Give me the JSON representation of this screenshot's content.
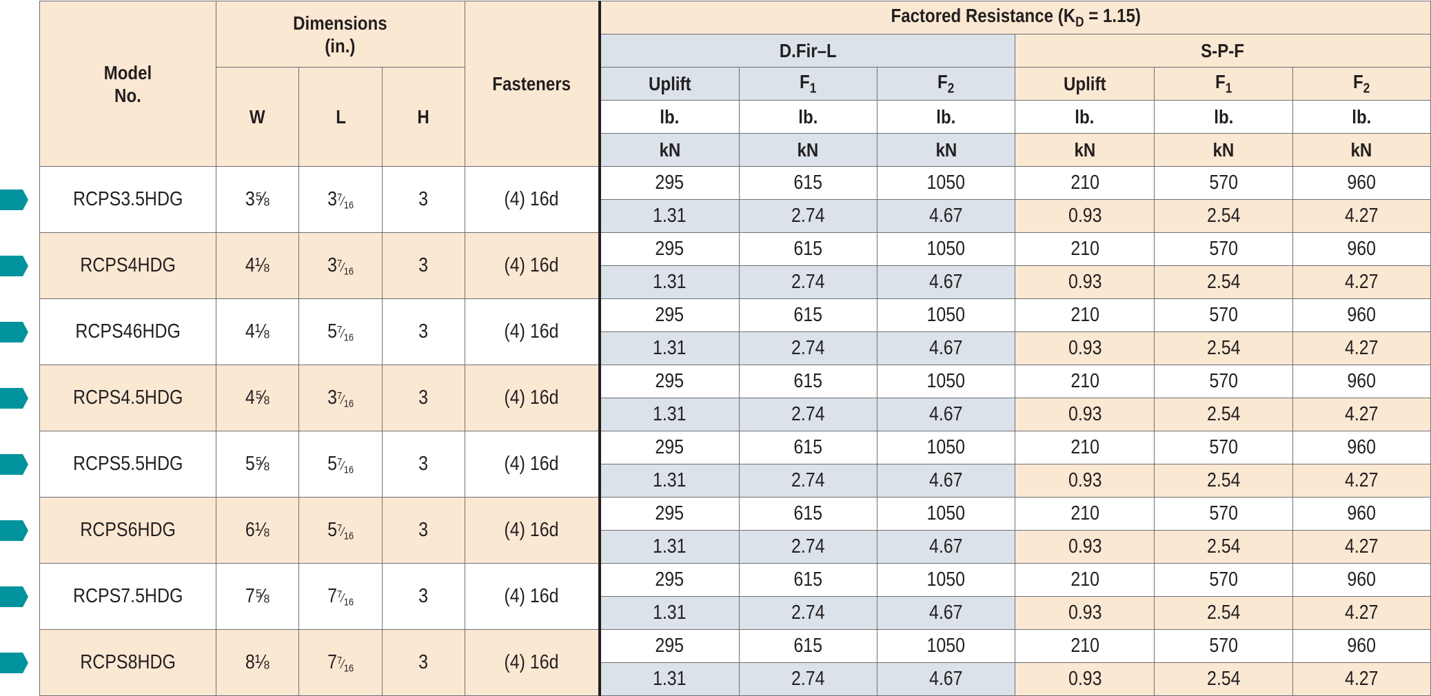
{
  "header": {
    "model_no": "Model\nNo.",
    "dimensions": "Dimensions\n(in.)",
    "fasteners": "Fasteners",
    "factored_resistance": "Factored Resistance (K",
    "factored_resistance_sub": "D",
    "factored_resistance_tail": " = 1.15)",
    "group_dfir": "D.Fir–L",
    "group_spf": "S-P-F",
    "dim_cols": [
      "W",
      "L",
      "H"
    ],
    "load_cols": [
      {
        "base": "Uplift",
        "sub": ""
      },
      {
        "base": "F",
        "sub": "1"
      },
      {
        "base": "F",
        "sub": "2"
      },
      {
        "base": "Uplift",
        "sub": ""
      },
      {
        "base": "F",
        "sub": "1"
      },
      {
        "base": "F",
        "sub": "2"
      }
    ],
    "unit_lb": "lb.",
    "unit_kn": "kN"
  },
  "rows": [
    {
      "model": "RCPS3.5HDG",
      "w": "3⅝",
      "l": "3·",
      "h": "3",
      "fasteners": "(4) 16d",
      "lb": [
        "295",
        "615",
        "1050",
        "210",
        "570",
        "960"
      ],
      "kn": [
        "1.31",
        "2.74",
        "4.67",
        "0.93",
        "2.54",
        "4.27"
      ]
    },
    {
      "model": "RCPS4HDG",
      "w": "4⅛",
      "l": "3·",
      "h": "3",
      "fasteners": "(4) 16d",
      "lb": [
        "295",
        "615",
        "1050",
        "210",
        "570",
        "960"
      ],
      "kn": [
        "1.31",
        "2.74",
        "4.67",
        "0.93",
        "2.54",
        "4.27"
      ]
    },
    {
      "model": "RCPS46HDG",
      "w": "4⅛",
      "l": "5·",
      "h": "3",
      "fasteners": "(4) 16d",
      "lb": [
        "295",
        "615",
        "1050",
        "210",
        "570",
        "960"
      ],
      "kn": [
        "1.31",
        "2.74",
        "4.67",
        "0.93",
        "2.54",
        "4.27"
      ]
    },
    {
      "model": "RCPS4.5HDG",
      "w": "4⅝",
      "l": "3·",
      "h": "3",
      "fasteners": "(4) 16d",
      "lb": [
        "295",
        "615",
        "1050",
        "210",
        "570",
        "960"
      ],
      "kn": [
        "1.31",
        "2.74",
        "4.67",
        "0.93",
        "2.54",
        "4.27"
      ]
    },
    {
      "model": "RCPS5.5HDG",
      "w": "5⅝",
      "l": "5·",
      "h": "3",
      "fasteners": "(4) 16d",
      "lb": [
        "295",
        "615",
        "1050",
        "210",
        "570",
        "960"
      ],
      "kn": [
        "1.31",
        "2.74",
        "4.67",
        "0.93",
        "2.54",
        "4.27"
      ]
    },
    {
      "model": "RCPS6HDG",
      "w": "6⅛",
      "l": "5·",
      "h": "3",
      "fasteners": "(4) 16d",
      "lb": [
        "295",
        "615",
        "1050",
        "210",
        "570",
        "960"
      ],
      "kn": [
        "1.31",
        "2.74",
        "4.67",
        "0.93",
        "2.54",
        "4.27"
      ]
    },
    {
      "model": "RCPS7.5HDG",
      "w": "7⅝",
      "l": "7·",
      "h": "3",
      "fasteners": "(4) 16d",
      "lb": [
        "295",
        "615",
        "1050",
        "210",
        "570",
        "960"
      ],
      "kn": [
        "1.31",
        "2.74",
        "4.67",
        "0.93",
        "2.54",
        "4.27"
      ]
    },
    {
      "model": "RCPS8HDG",
      "w": "8⅛",
      "l": "7·",
      "h": "3",
      "fasteners": "(4) 16d",
      "lb": [
        "295",
        "615",
        "1050",
        "210",
        "570",
        "960"
      ],
      "kn": [
        "1.31",
        "2.74",
        "4.67",
        "0.93",
        "2.54",
        "4.27"
      ]
    }
  ],
  "colors": {
    "beige": "#fbe8d3",
    "blue": "#dbe2e9",
    "marker": "#00939d",
    "border": "#6d6e71"
  },
  "icons": {
    "row_marker": "tab-marker-icon"
  }
}
